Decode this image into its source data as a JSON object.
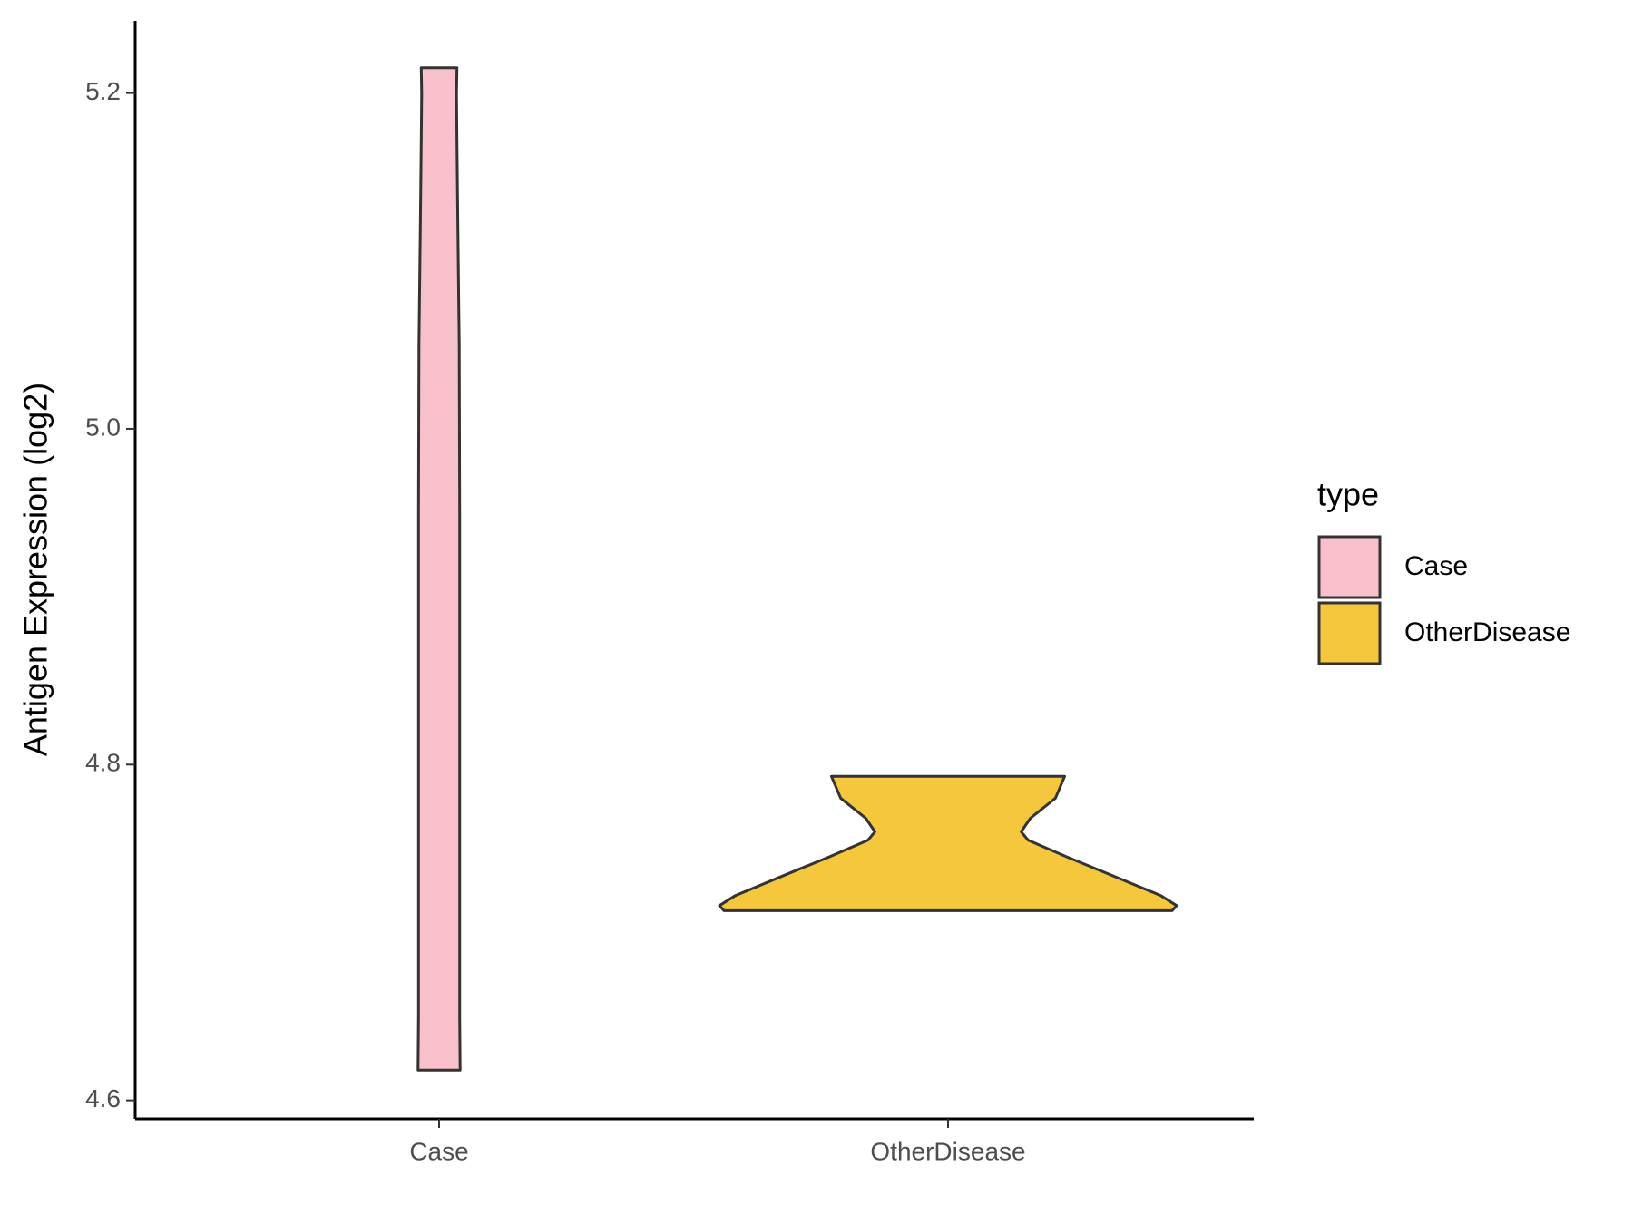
{
  "chart_data": {
    "type": "violin",
    "y_label": "Antigen Expression (log2)",
    "categories": [
      "Case",
      "OtherDisease"
    ],
    "ylim": [
      4.589,
      5.243
    ],
    "yticks": [
      {
        "value": 4.6,
        "label": "4.6"
      },
      {
        "value": 4.8,
        "label": "4.8"
      },
      {
        "value": 5.0,
        "label": "5.0"
      },
      {
        "value": 5.2,
        "label": "5.2"
      }
    ],
    "legend_title": "type",
    "legend_position": "right",
    "series": [
      {
        "name": "Case",
        "color": "#f7c0cb",
        "y": [
          4.618,
          4.65,
          4.75,
          4.85,
          4.95,
          5.05,
          5.12,
          5.17,
          5.2,
          5.215
        ],
        "width": [
          0.092,
          0.09,
          0.09,
          0.09,
          0.09,
          0.088,
          0.082,
          0.078,
          0.076,
          0.078
        ]
      },
      {
        "name": "OtherDisease",
        "color": "#f5c73d",
        "y": [
          4.713,
          4.716,
          4.722,
          4.735,
          4.745,
          4.755,
          4.76,
          4.768,
          4.78,
          4.793
        ],
        "width": [
          0.98,
          1.0,
          0.93,
          0.7,
          0.52,
          0.35,
          0.32,
          0.36,
          0.47,
          0.51
        ]
      }
    ]
  }
}
